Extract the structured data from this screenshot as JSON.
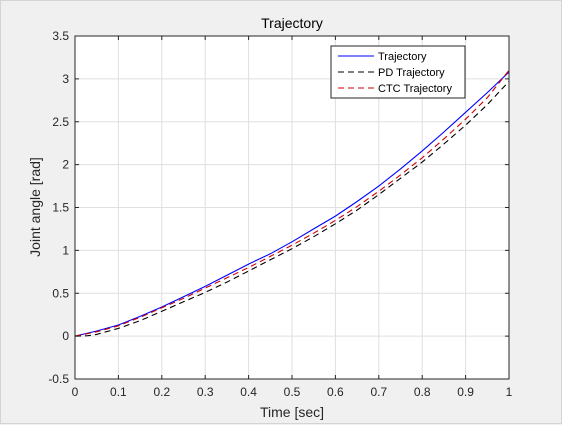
{
  "chart_data": {
    "type": "line",
    "title": "Trajectory",
    "xlabel": "Time [sec]",
    "ylabel": "Joint angle [rad]",
    "xlim": [
      0,
      1
    ],
    "ylim": [
      -0.5,
      3.5
    ],
    "xticks": [
      0,
      0.1,
      0.2,
      0.3,
      0.4,
      0.5,
      0.6,
      0.7,
      0.8,
      0.9,
      1
    ],
    "yticks": [
      -0.5,
      0,
      0.5,
      1,
      1.5,
      2,
      2.5,
      3,
      3.5
    ],
    "xtick_labels": [
      "0",
      "0.1",
      "0.2",
      "0.3",
      "0.4",
      "0.5",
      "0.6",
      "0.7",
      "0.8",
      "0.9",
      "1"
    ],
    "ytick_labels": [
      "-0.5",
      "0",
      "0.5",
      "1",
      "1.5",
      "2",
      "2.5",
      "3",
      "3.5"
    ],
    "grid": true,
    "legend_position": "top-right",
    "series": [
      {
        "name": "Trajectory",
        "color": "#0000ff",
        "style": "solid",
        "x": [
          0,
          0.05,
          0.1,
          0.15,
          0.2,
          0.25,
          0.3,
          0.35,
          0.4,
          0.45,
          0.5,
          0.55,
          0.6,
          0.65,
          0.7,
          0.75,
          0.8,
          0.85,
          0.9,
          0.95,
          1.0
        ],
        "y": [
          0,
          0.06,
          0.13,
          0.23,
          0.34,
          0.46,
          0.58,
          0.71,
          0.84,
          0.96,
          1.1,
          1.25,
          1.4,
          1.57,
          1.75,
          1.95,
          2.16,
          2.38,
          2.61,
          2.84,
          3.08
        ]
      },
      {
        "name": "PD Trajectory",
        "color": "#000000",
        "style": "dashed",
        "x": [
          0,
          0.03,
          0.05,
          0.1,
          0.15,
          0.2,
          0.25,
          0.3,
          0.35,
          0.4,
          0.45,
          0.5,
          0.55,
          0.6,
          0.65,
          0.7,
          0.75,
          0.8,
          0.85,
          0.9,
          0.95,
          1.0
        ],
        "y": [
          0,
          0.005,
          0.02,
          0.09,
          0.18,
          0.29,
          0.4,
          0.51,
          0.63,
          0.76,
          0.89,
          1.02,
          1.16,
          1.31,
          1.47,
          1.65,
          1.84,
          2.03,
          2.24,
          2.46,
          2.7,
          2.97
        ]
      },
      {
        "name": "CTC Trajectory",
        "color": "#cc0000",
        "style": "dashed",
        "x": [
          0,
          0.05,
          0.1,
          0.15,
          0.2,
          0.25,
          0.3,
          0.35,
          0.4,
          0.45,
          0.5,
          0.55,
          0.6,
          0.65,
          0.7,
          0.75,
          0.8,
          0.85,
          0.9,
          0.95,
          1.0
        ],
        "y": [
          0,
          0.05,
          0.12,
          0.22,
          0.33,
          0.44,
          0.56,
          0.68,
          0.8,
          0.93,
          1.06,
          1.2,
          1.35,
          1.51,
          1.69,
          1.88,
          2.08,
          2.3,
          2.53,
          2.78,
          3.1
        ]
      }
    ]
  }
}
